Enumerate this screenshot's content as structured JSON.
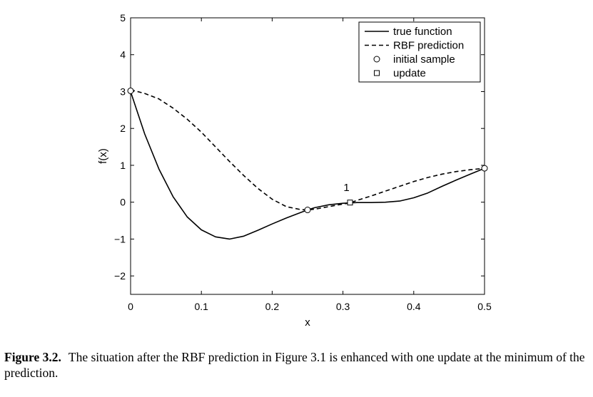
{
  "chart_data": {
    "type": "line",
    "xlabel": "x",
    "ylabel": "f(x)",
    "xlim": [
      0,
      0.5
    ],
    "ylim": [
      -2.5,
      5
    ],
    "xticks": [
      0,
      0.1,
      0.2,
      0.3,
      0.4,
      0.5
    ],
    "xtick_labels": [
      "0",
      "0.1",
      "0.2",
      "0.3",
      "0.4",
      "0.5"
    ],
    "yticks": [
      -2,
      -1,
      0,
      1,
      2,
      3,
      4,
      5
    ],
    "ytick_labels": [
      "−2",
      "−1",
      "0",
      "1",
      "2",
      "3",
      "4",
      "5"
    ],
    "grid": false,
    "legend_position": "top-right",
    "series": [
      {
        "name": "true function",
        "style": "solid",
        "x": [
          0,
          0.02,
          0.04,
          0.06,
          0.08,
          0.1,
          0.12,
          0.14,
          0.16,
          0.18,
          0.2,
          0.22,
          0.24,
          0.25,
          0.26,
          0.28,
          0.3,
          0.31,
          0.32,
          0.34,
          0.36,
          0.38,
          0.4,
          0.42,
          0.44,
          0.46,
          0.48,
          0.5
        ],
        "y": [
          3.0,
          1.85,
          0.9,
          0.15,
          -0.4,
          -0.75,
          -0.94,
          -1.0,
          -0.92,
          -0.76,
          -0.59,
          -0.43,
          -0.28,
          -0.21,
          -0.15,
          -0.07,
          -0.03,
          -0.02,
          -0.01,
          -0.01,
          0.0,
          0.03,
          0.12,
          0.25,
          0.43,
          0.6,
          0.76,
          0.92
        ]
      },
      {
        "name": "RBF prediction",
        "style": "dashed",
        "x": [
          0,
          0.02,
          0.04,
          0.06,
          0.08,
          0.1,
          0.12,
          0.14,
          0.16,
          0.18,
          0.2,
          0.22,
          0.24,
          0.25,
          0.26,
          0.28,
          0.3,
          0.31,
          0.32,
          0.34,
          0.36,
          0.38,
          0.4,
          0.42,
          0.44,
          0.46,
          0.48,
          0.5
        ],
        "y": [
          3.05,
          2.95,
          2.8,
          2.55,
          2.25,
          1.9,
          1.5,
          1.1,
          0.72,
          0.37,
          0.08,
          -0.12,
          -0.2,
          -0.21,
          -0.19,
          -0.12,
          -0.05,
          -0.02,
          0.05,
          0.17,
          0.3,
          0.43,
          0.56,
          0.67,
          0.76,
          0.83,
          0.88,
          0.92
        ]
      },
      {
        "name": "initial sample",
        "style": "circle-marker",
        "x": [
          0,
          0.25,
          0.5
        ],
        "y": [
          3.02,
          -0.21,
          0.92
        ]
      },
      {
        "name": "update",
        "style": "square-marker",
        "x": [
          0.31
        ],
        "y": [
          -0.01
        ]
      }
    ],
    "annotations": [
      {
        "text": "1",
        "x": 0.305,
        "y": 0.3
      }
    ]
  },
  "caption": {
    "label": "Figure 3.2.",
    "text": "The situation after the RBF prediction in Figure 3.1 is enhanced with one update at the minimum of the prediction."
  }
}
